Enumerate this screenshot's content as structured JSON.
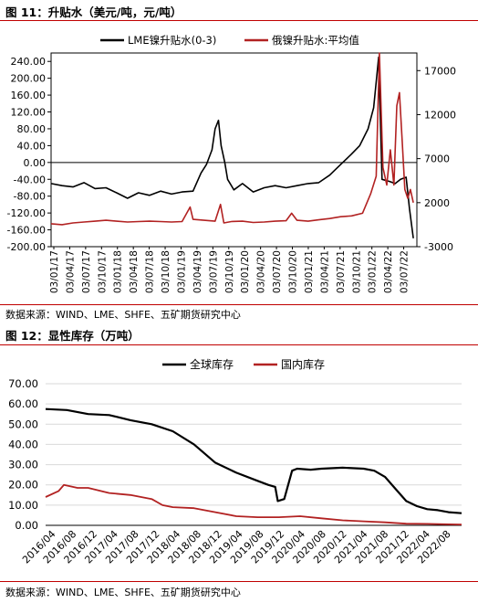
{
  "figure1": {
    "title": "图 11：升贴水（美元/吨，元/吨）",
    "source": "数据来源：WIND、LME、SHFE、五矿期货研究中心"
  },
  "figure2": {
    "title": "图 12：显性库存（万吨）",
    "source": "数据来源：WIND、LME、SHFE、五矿期货研究中心"
  },
  "colors": {
    "black": "#000000",
    "red": "#b22222",
    "rule": "#c00000"
  },
  "chart_data": [
    {
      "type": "line",
      "title": "",
      "y_left": {
        "min": -200,
        "max": 260,
        "ticks": [
          -200,
          -160,
          -120,
          -80,
          -40,
          0,
          40,
          80,
          120,
          160,
          200,
          240
        ]
      },
      "y_right": {
        "min": -3000,
        "max": 19000,
        "ticks": [
          -3000,
          2000,
          7000,
          12000,
          17000
        ]
      },
      "x_range": [
        "2017-03-01",
        "2022-09-30"
      ],
      "x_tick_labels": [
        "03/01/17",
        "03/04/17",
        "03/07/17",
        "03/10/17",
        "03/01/18",
        "03/04/18",
        "03/07/18",
        "03/10/18",
        "03/01/19",
        "03/04/19",
        "03/07/19",
        "03/10/19",
        "03/01/20",
        "03/04/20",
        "03/07/20",
        "03/10/20",
        "03/01/21",
        "03/04/21",
        "03/07/21",
        "03/10/21",
        "03/01/22",
        "03/04/22",
        "03/07/22"
      ],
      "grid": false,
      "legend": "top",
      "series": [
        {
          "name": "LME镍升贴水(0-3)",
          "axis": "left",
          "color": "#000000",
          "points": [
            [
              "2017-03-01",
              -50
            ],
            [
              "2017-05-01",
              -55
            ],
            [
              "2017-07-01",
              -58
            ],
            [
              "2017-09-01",
              -48
            ],
            [
              "2017-11-01",
              -62
            ],
            [
              "2018-01-01",
              -60
            ],
            [
              "2018-03-01",
              -72
            ],
            [
              "2018-05-01",
              -85
            ],
            [
              "2018-07-01",
              -72
            ],
            [
              "2018-09-01",
              -78
            ],
            [
              "2018-11-01",
              -68
            ],
            [
              "2019-01-01",
              -75
            ],
            [
              "2019-03-01",
              -70
            ],
            [
              "2019-05-01",
              -68
            ],
            [
              "2019-06-15",
              -25
            ],
            [
              "2019-07-15",
              -5
            ],
            [
              "2019-08-15",
              30
            ],
            [
              "2019-09-01",
              80
            ],
            [
              "2019-09-20",
              100
            ],
            [
              "2019-10-05",
              40
            ],
            [
              "2019-10-25",
              0
            ],
            [
              "2019-11-10",
              -40
            ],
            [
              "2019-12-15",
              -65
            ],
            [
              "2020-02-01",
              -50
            ],
            [
              "2020-04-01",
              -70
            ],
            [
              "2020-06-01",
              -60
            ],
            [
              "2020-08-01",
              -55
            ],
            [
              "2020-10-01",
              -60
            ],
            [
              "2020-12-01",
              -55
            ],
            [
              "2021-02-01",
              -50
            ],
            [
              "2021-04-01",
              -48
            ],
            [
              "2021-06-01",
              -30
            ],
            [
              "2021-08-01",
              -5
            ],
            [
              "2021-10-01",
              20
            ],
            [
              "2021-11-15",
              40
            ],
            [
              "2022-01-01",
              80
            ],
            [
              "2022-02-01",
              130
            ],
            [
              "2022-03-01",
              250
            ],
            [
              "2022-03-20",
              -40
            ],
            [
              "2022-05-01",
              -45
            ],
            [
              "2022-06-01",
              -50
            ],
            [
              "2022-07-01",
              -40
            ],
            [
              "2022-08-01",
              -35
            ],
            [
              "2022-08-20",
              -110
            ],
            [
              "2022-09-10",
              -180
            ]
          ]
        },
        {
          "name": "俄镍升贴水:平均值",
          "axis": "right",
          "color": "#b22222",
          "points": [
            [
              "2017-03-01",
              -400
            ],
            [
              "2017-05-01",
              -500
            ],
            [
              "2017-07-01",
              -300
            ],
            [
              "2017-09-01",
              -200
            ],
            [
              "2017-11-01",
              -100
            ],
            [
              "2018-01-01",
              0
            ],
            [
              "2018-03-01",
              -100
            ],
            [
              "2018-05-01",
              -200
            ],
            [
              "2018-07-01",
              -150
            ],
            [
              "2018-09-01",
              -100
            ],
            [
              "2018-11-01",
              -150
            ],
            [
              "2019-01-01",
              -200
            ],
            [
              "2019-03-01",
              -150
            ],
            [
              "2019-04-15",
              1500
            ],
            [
              "2019-05-01",
              100
            ],
            [
              "2019-07-01",
              0
            ],
            [
              "2019-09-01",
              -100
            ],
            [
              "2019-10-01",
              1800
            ],
            [
              "2019-10-20",
              -300
            ],
            [
              "2019-12-01",
              -150
            ],
            [
              "2020-02-01",
              -100
            ],
            [
              "2020-04-01",
              -250
            ],
            [
              "2020-06-01",
              -200
            ],
            [
              "2020-08-01",
              -100
            ],
            [
              "2020-10-01",
              -50
            ],
            [
              "2020-11-01",
              800
            ],
            [
              "2020-12-01",
              0
            ],
            [
              "2021-02-01",
              -100
            ],
            [
              "2021-04-01",
              50
            ],
            [
              "2021-06-01",
              200
            ],
            [
              "2021-08-01",
              400
            ],
            [
              "2021-10-01",
              500
            ],
            [
              "2021-12-01",
              800
            ],
            [
              "2022-01-15",
              3000
            ],
            [
              "2022-02-15",
              5000
            ],
            [
              "2022-03-05",
              19000
            ],
            [
              "2022-03-25",
              6000
            ],
            [
              "2022-04-15",
              4000
            ],
            [
              "2022-05-05",
              8000
            ],
            [
              "2022-05-25",
              4000
            ],
            [
              "2022-06-10",
              13000
            ],
            [
              "2022-06-25",
              14500
            ],
            [
              "2022-07-10",
              9000
            ],
            [
              "2022-07-25",
              3500
            ],
            [
              "2022-08-10",
              2500
            ],
            [
              "2022-08-25",
              3500
            ],
            [
              "2022-09-10",
              2000
            ]
          ]
        }
      ]
    },
    {
      "type": "area",
      "title": "",
      "y": {
        "min": 0,
        "max": 70,
        "ticks": [
          0,
          10,
          20,
          30,
          40,
          50,
          60,
          70
        ],
        "tick_labels": [
          "0.00",
          "10.00",
          "20.00",
          "30.00",
          "40.00",
          "50.00",
          "60.00",
          "70.00"
        ]
      },
      "x_range": [
        "2016-04-01",
        "2022-10-15"
      ],
      "x_tick_labels": [
        "2016/04",
        "2016/08",
        "2016/12",
        "2017/04",
        "2017/08",
        "2017/12",
        "2018/04",
        "2018/08",
        "2018/12",
        "2019/04",
        "2019/08",
        "2019/12",
        "2020/04",
        "2020/08",
        "2020/12",
        "2021/04",
        "2021/08",
        "2021/12",
        "2022/04",
        "2022/08"
      ],
      "grid": true,
      "legend": "top",
      "series": [
        {
          "name": "全球库存",
          "color": "#000000",
          "points": [
            [
              "2016-04-01",
              57.5
            ],
            [
              "2016-08-01",
              57
            ],
            [
              "2016-12-01",
              55
            ],
            [
              "2017-04-01",
              54.5
            ],
            [
              "2017-08-01",
              52
            ],
            [
              "2017-12-01",
              50
            ],
            [
              "2018-04-01",
              46.5
            ],
            [
              "2018-08-01",
              40
            ],
            [
              "2018-12-01",
              31
            ],
            [
              "2019-04-01",
              26
            ],
            [
              "2019-08-01",
              22
            ],
            [
              "2019-10-01",
              20
            ],
            [
              "2019-11-10",
              19
            ],
            [
              "2019-11-25",
              12
            ],
            [
              "2020-01-01",
              13
            ],
            [
              "2020-02-15",
              27
            ],
            [
              "2020-03-15",
              28
            ],
            [
              "2020-06-01",
              27.5
            ],
            [
              "2020-08-01",
              28
            ],
            [
              "2020-12-01",
              28.5
            ],
            [
              "2021-04-01",
              28
            ],
            [
              "2021-06-01",
              27
            ],
            [
              "2021-08-01",
              24
            ],
            [
              "2021-10-01",
              18
            ],
            [
              "2021-12-01",
              12
            ],
            [
              "2022-02-01",
              9.5
            ],
            [
              "2022-04-01",
              8
            ],
            [
              "2022-06-01",
              7.5
            ],
            [
              "2022-08-01",
              6.5
            ],
            [
              "2022-10-15",
              6
            ]
          ]
        },
        {
          "name": "国内库存",
          "color": "#b22222",
          "points": [
            [
              "2016-04-01",
              14
            ],
            [
              "2016-06-15",
              17
            ],
            [
              "2016-07-15",
              20
            ],
            [
              "2016-10-01",
              18.5
            ],
            [
              "2016-12-01",
              18.5
            ],
            [
              "2017-04-01",
              16
            ],
            [
              "2017-08-01",
              15
            ],
            [
              "2017-12-01",
              13
            ],
            [
              "2018-02-01",
              10
            ],
            [
              "2018-04-01",
              9
            ],
            [
              "2018-08-01",
              8.5
            ],
            [
              "2018-12-01",
              6.5
            ],
            [
              "2019-04-01",
              4.5
            ],
            [
              "2019-08-01",
              4
            ],
            [
              "2019-12-01",
              4
            ],
            [
              "2020-04-01",
              4.5
            ],
            [
              "2020-08-01",
              3.5
            ],
            [
              "2020-12-01",
              2.5
            ],
            [
              "2021-04-01",
              2
            ],
            [
              "2021-08-01",
              1.5
            ],
            [
              "2021-12-01",
              0.8
            ],
            [
              "2022-04-01",
              0.7
            ],
            [
              "2022-08-01",
              0.5
            ],
            [
              "2022-10-15",
              0.4
            ]
          ]
        }
      ]
    }
  ]
}
